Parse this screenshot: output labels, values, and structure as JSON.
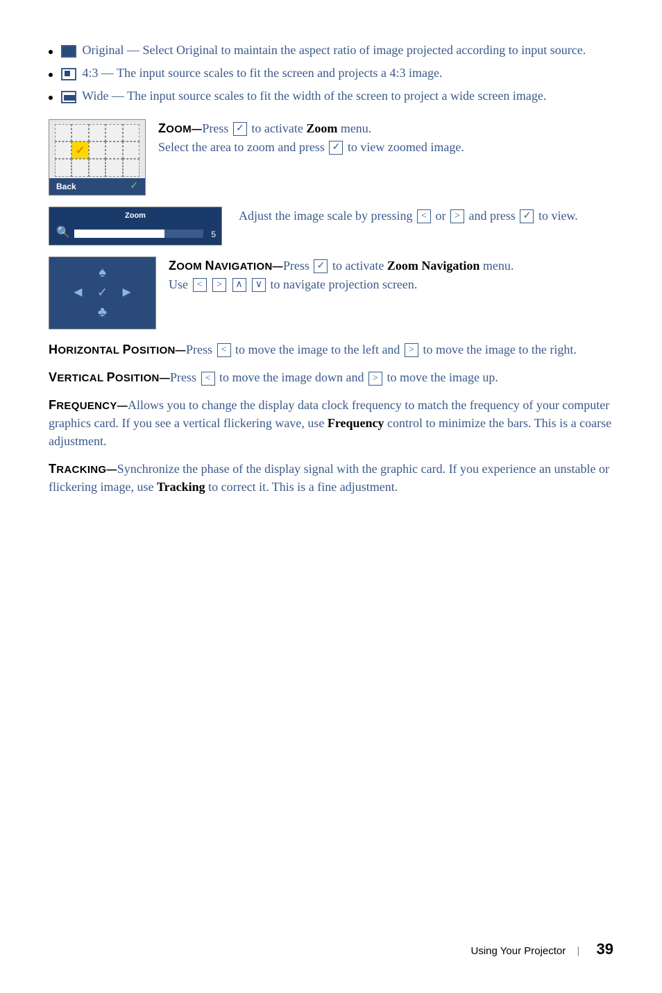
{
  "bullets": [
    {
      "iconClass": "solid",
      "text": " Original — Select Original to maintain the aspect ratio of image projected according to input source."
    },
    {
      "iconClass": "split",
      "text": " 4:3 — The input source scales to fit the screen and projects a 4:3 image."
    },
    {
      "iconClass": "wide",
      "text": " Wide — The input source scales to fit the width of the screen to project a wide screen image."
    }
  ],
  "gridWidget": {
    "footerLabel": "Back",
    "highlightIndex": 6
  },
  "zoomSection": {
    "heading": "Zoom—",
    "line1a": "Press ",
    "line1b": " to activate ",
    "line1bold": "Zoom",
    "line1c": " menu.",
    "line2a": "Select the area to zoom and press ",
    "line2b": " to view zoomed image."
  },
  "zoomBar": {
    "label": "Zoom",
    "value": "5",
    "line_a": "Adjust the image scale by pressing ",
    "line_b": " or ",
    "line_c": " and press ",
    "line_d": " to view."
  },
  "navSection": {
    "heading": "Zoom Navigation—",
    "line1a": "Press ",
    "line1b": " to activate ",
    "line1bold": "Zoom Navigation",
    "line1c": " menu.",
    "line2a": "Use ",
    "line2b": " to navigate projection screen."
  },
  "hpos": {
    "heading": "Horizontal Position—",
    "a": "Press ",
    "b": " to move the image to the left and ",
    "c": " to move the image to the right."
  },
  "vpos": {
    "heading": "Vertical Position—",
    "a": "Press ",
    "b": " to move the image down and ",
    "c": " to move the image up."
  },
  "freq": {
    "heading": "Frequency—",
    "text": "Allows you to change the display data clock frequency to match the frequency of your computer graphics card. If you see a vertical flickering wave, use ",
    "bold": "Frequency",
    "text2": " control to minimize the bars. This is a coarse adjustment."
  },
  "track": {
    "heading": "Tracking—",
    "text": "Synchronize the phase of the display signal with the graphic card. If you experience an unstable or flickering image, use ",
    "bold": "Tracking",
    "text2": " to correct it. This is a fine adjustment."
  },
  "footer": {
    "section": "Using Your Projector",
    "page": "39"
  },
  "icons": {
    "check": "✓",
    "left": "<",
    "right": ">",
    "up": "∧",
    "down": "∨"
  }
}
